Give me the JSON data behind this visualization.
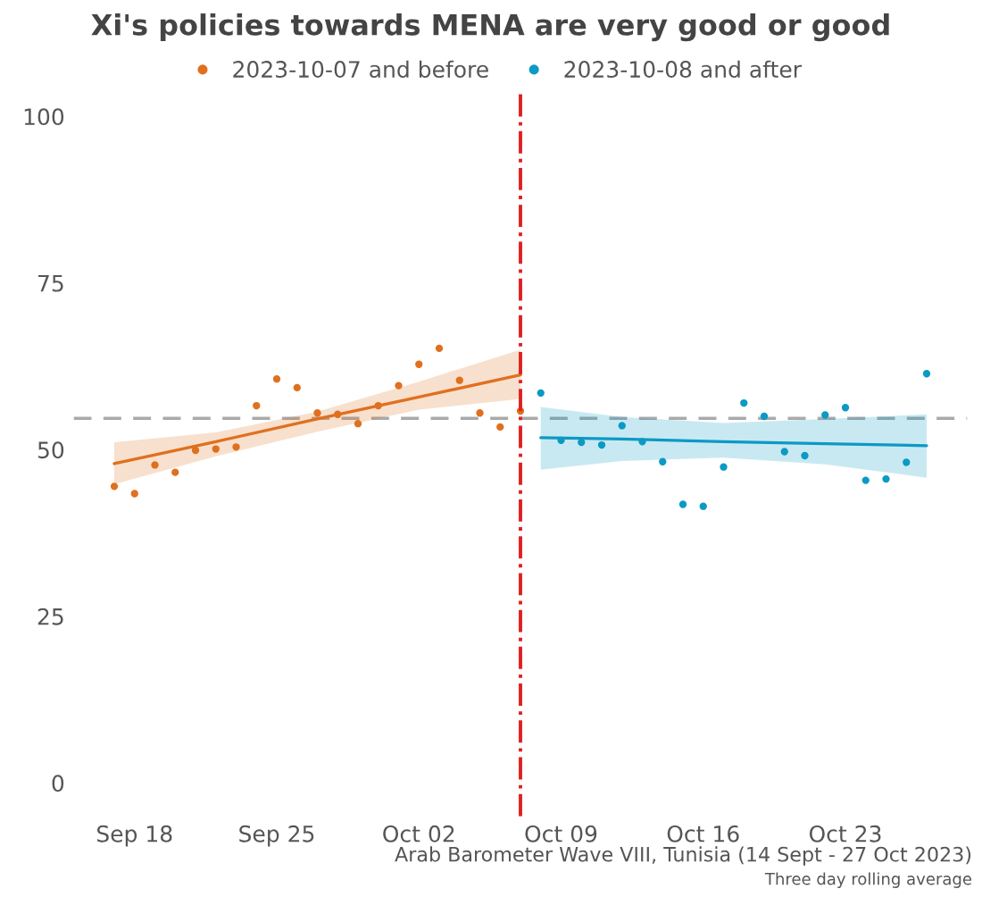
{
  "chart_data": {
    "type": "line",
    "title": "Xi's policies towards MENA are very good or good",
    "series": [
      {
        "name": "2023-10-07 and before",
        "type": "scatter",
        "marker": "circle",
        "color": "#e0701e",
        "x": [
          "2023-09-17",
          "2023-09-18",
          "2023-09-19",
          "2023-09-20",
          "2023-09-21",
          "2023-09-22",
          "2023-09-23",
          "2023-09-24",
          "2023-09-25",
          "2023-09-26",
          "2023-09-27",
          "2023-09-28",
          "2023-09-29",
          "2023-09-30",
          "2023-10-01",
          "2023-10-02",
          "2023-10-03",
          "2023-10-04",
          "2023-10-05",
          "2023-10-06",
          "2023-10-07"
        ],
        "values": [
          44.5,
          43.4,
          47.7,
          46.6,
          49.9,
          50.1,
          50.4,
          56.6,
          60.6,
          59.3,
          55.5,
          55.3,
          53.9,
          56.6,
          59.6,
          62.8,
          65.2,
          60.4,
          55.5,
          53.4,
          55.8
        ]
      },
      {
        "name": "2023-10-08 and after",
        "type": "scatter",
        "marker": "circle",
        "color": "#0b9ac4",
        "x": [
          "2023-10-08",
          "2023-10-09",
          "2023-10-10",
          "2023-10-11",
          "2023-10-12",
          "2023-10-13",
          "2023-10-14",
          "2023-10-15",
          "2023-10-16",
          "2023-10-17",
          "2023-10-18",
          "2023-10-19",
          "2023-10-20",
          "2023-10-21",
          "2023-10-22",
          "2023-10-23",
          "2023-10-24",
          "2023-10-25",
          "2023-10-26",
          "2023-10-27"
        ],
        "values": [
          58.5,
          51.4,
          51.1,
          50.7,
          53.6,
          51.2,
          48.2,
          41.8,
          41.5,
          47.4,
          57.0,
          55.0,
          49.7,
          49.1,
          55.2,
          56.3,
          45.4,
          45.6,
          48.1,
          61.4
        ]
      },
      {
        "marker": "none",
        "color": "#e0701e",
        "x": [
          "2023-09-17",
          "2023-09-22",
          "2023-09-27",
          "2023-10-02",
          "2023-10-07"
        ],
        "values": [
          47.9,
          51.2,
          54.6,
          57.9,
          61.2
        ],
        "lower": [
          44.8,
          49.0,
          52.7,
          56.0,
          57.6
        ],
        "upper": [
          51.1,
          52.6,
          55.7,
          60.2,
          65.0
        ]
      },
      {
        "marker": "none",
        "color": "#0b9ac4",
        "x": [
          "2023-10-08",
          "2023-10-12",
          "2023-10-17",
          "2023-10-22",
          "2023-10-27"
        ],
        "values": [
          51.8,
          51.6,
          51.2,
          50.9,
          50.6
        ],
        "lower": [
          47.0,
          48.3,
          48.8,
          47.8,
          45.8
        ],
        "upper": [
          56.4,
          54.9,
          54.0,
          54.6,
          55.3
        ]
      }
    ],
    "ref_lines": [
      {
        "axis": "y",
        "value": 54.7,
        "color": "#aaaaaa",
        "line_style": "dashed"
      },
      {
        "axis": "x",
        "value": "2023-10-07",
        "color": "#e02020",
        "line_style": "dashdot"
      }
    ],
    "xlim": [
      "2023-09-15",
      "2023-10-29"
    ],
    "xticks": [
      {
        "value": "2023-09-18",
        "label": "Sep 18"
      },
      {
        "value": "2023-09-25",
        "label": "Sep 25"
      },
      {
        "value": "2023-10-02",
        "label": "Oct 02"
      },
      {
        "value": "2023-10-09",
        "label": "Oct 09"
      },
      {
        "value": "2023-10-16",
        "label": "Oct 16"
      },
      {
        "value": "2023-10-23",
        "label": "Oct 23"
      }
    ],
    "ylim": [
      -5,
      104
    ],
    "yticks": [
      0,
      25,
      50,
      75,
      100
    ],
    "legend": "top",
    "grid": false,
    "annotations": [
      "Arab Barometer Wave VIII, Tunisia (14 Sept - 27 Oct 2023)",
      "Three day rolling average"
    ]
  }
}
